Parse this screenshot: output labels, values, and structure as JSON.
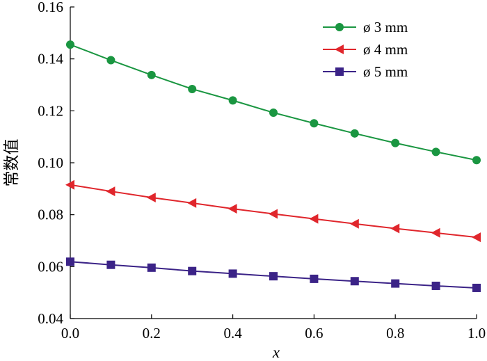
{
  "chart_data": {
    "type": "line",
    "title": "",
    "xlabel": "x",
    "ylabel": "常数值",
    "xlim": [
      0.0,
      1.0
    ],
    "ylim": [
      0.04,
      0.16
    ],
    "grid": false,
    "legend_position": "top-right",
    "x_ticks": [
      "0.0",
      "0.2",
      "0.4",
      "0.6",
      "0.8",
      "1.0"
    ],
    "y_ticks": [
      "0.04",
      "0.06",
      "0.08",
      "0.10",
      "0.12",
      "0.14",
      "0.16"
    ],
    "x": [
      0.0,
      0.1,
      0.2,
      0.3,
      0.4,
      0.5,
      0.6,
      0.7,
      0.8,
      0.9,
      1.0
    ],
    "series": [
      {
        "name": "ø 3 mm",
        "color": "#1a9641",
        "marker": "circle",
        "values": [
          0.1455,
          0.1395,
          0.1338,
          0.1284,
          0.124,
          0.1193,
          0.1152,
          0.1113,
          0.1076,
          0.1042,
          0.101
        ]
      },
      {
        "name": "ø 4 mm",
        "color": "#e0262c",
        "marker": "triangle-left",
        "values": [
          0.0915,
          0.089,
          0.0866,
          0.0845,
          0.0823,
          0.0803,
          0.0784,
          0.0765,
          0.0747,
          0.073,
          0.0713
        ]
      },
      {
        "name": "ø 5 mm",
        "color": "#3b2387",
        "marker": "square",
        "values": [
          0.0619,
          0.0607,
          0.0596,
          0.0583,
          0.0573,
          0.0563,
          0.0553,
          0.0544,
          0.0535,
          0.0526,
          0.0518
        ]
      }
    ]
  }
}
